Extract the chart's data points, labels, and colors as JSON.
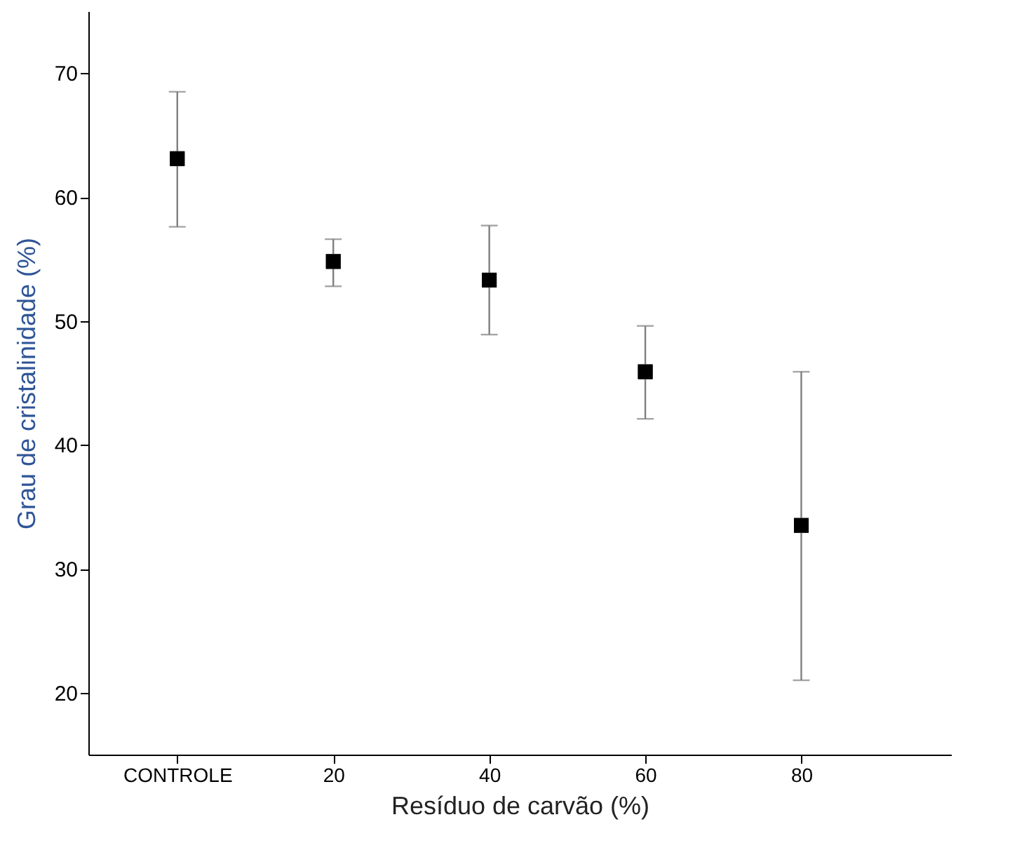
{
  "chart_data": {
    "type": "scatter",
    "xlabel": "Resíduo de carvão (%)",
    "ylabel": "Grau de cristalinidade (%)",
    "categories": [
      "CONTROLE",
      "20",
      "40",
      "60",
      "80"
    ],
    "values": [
      63.1,
      54.8,
      53.3,
      45.9,
      33.5
    ],
    "errors": [
      [
        57.6,
        68.5
      ],
      [
        52.8,
        56.6
      ],
      [
        48.9,
        57.7
      ],
      [
        42.1,
        49.6
      ],
      [
        21.0,
        45.9
      ]
    ],
    "color": "#000000",
    "marker": "square",
    "grid": false,
    "ylim": [
      15,
      75
    ],
    "yticks": [
      20,
      30,
      40,
      50,
      60,
      70
    ]
  }
}
